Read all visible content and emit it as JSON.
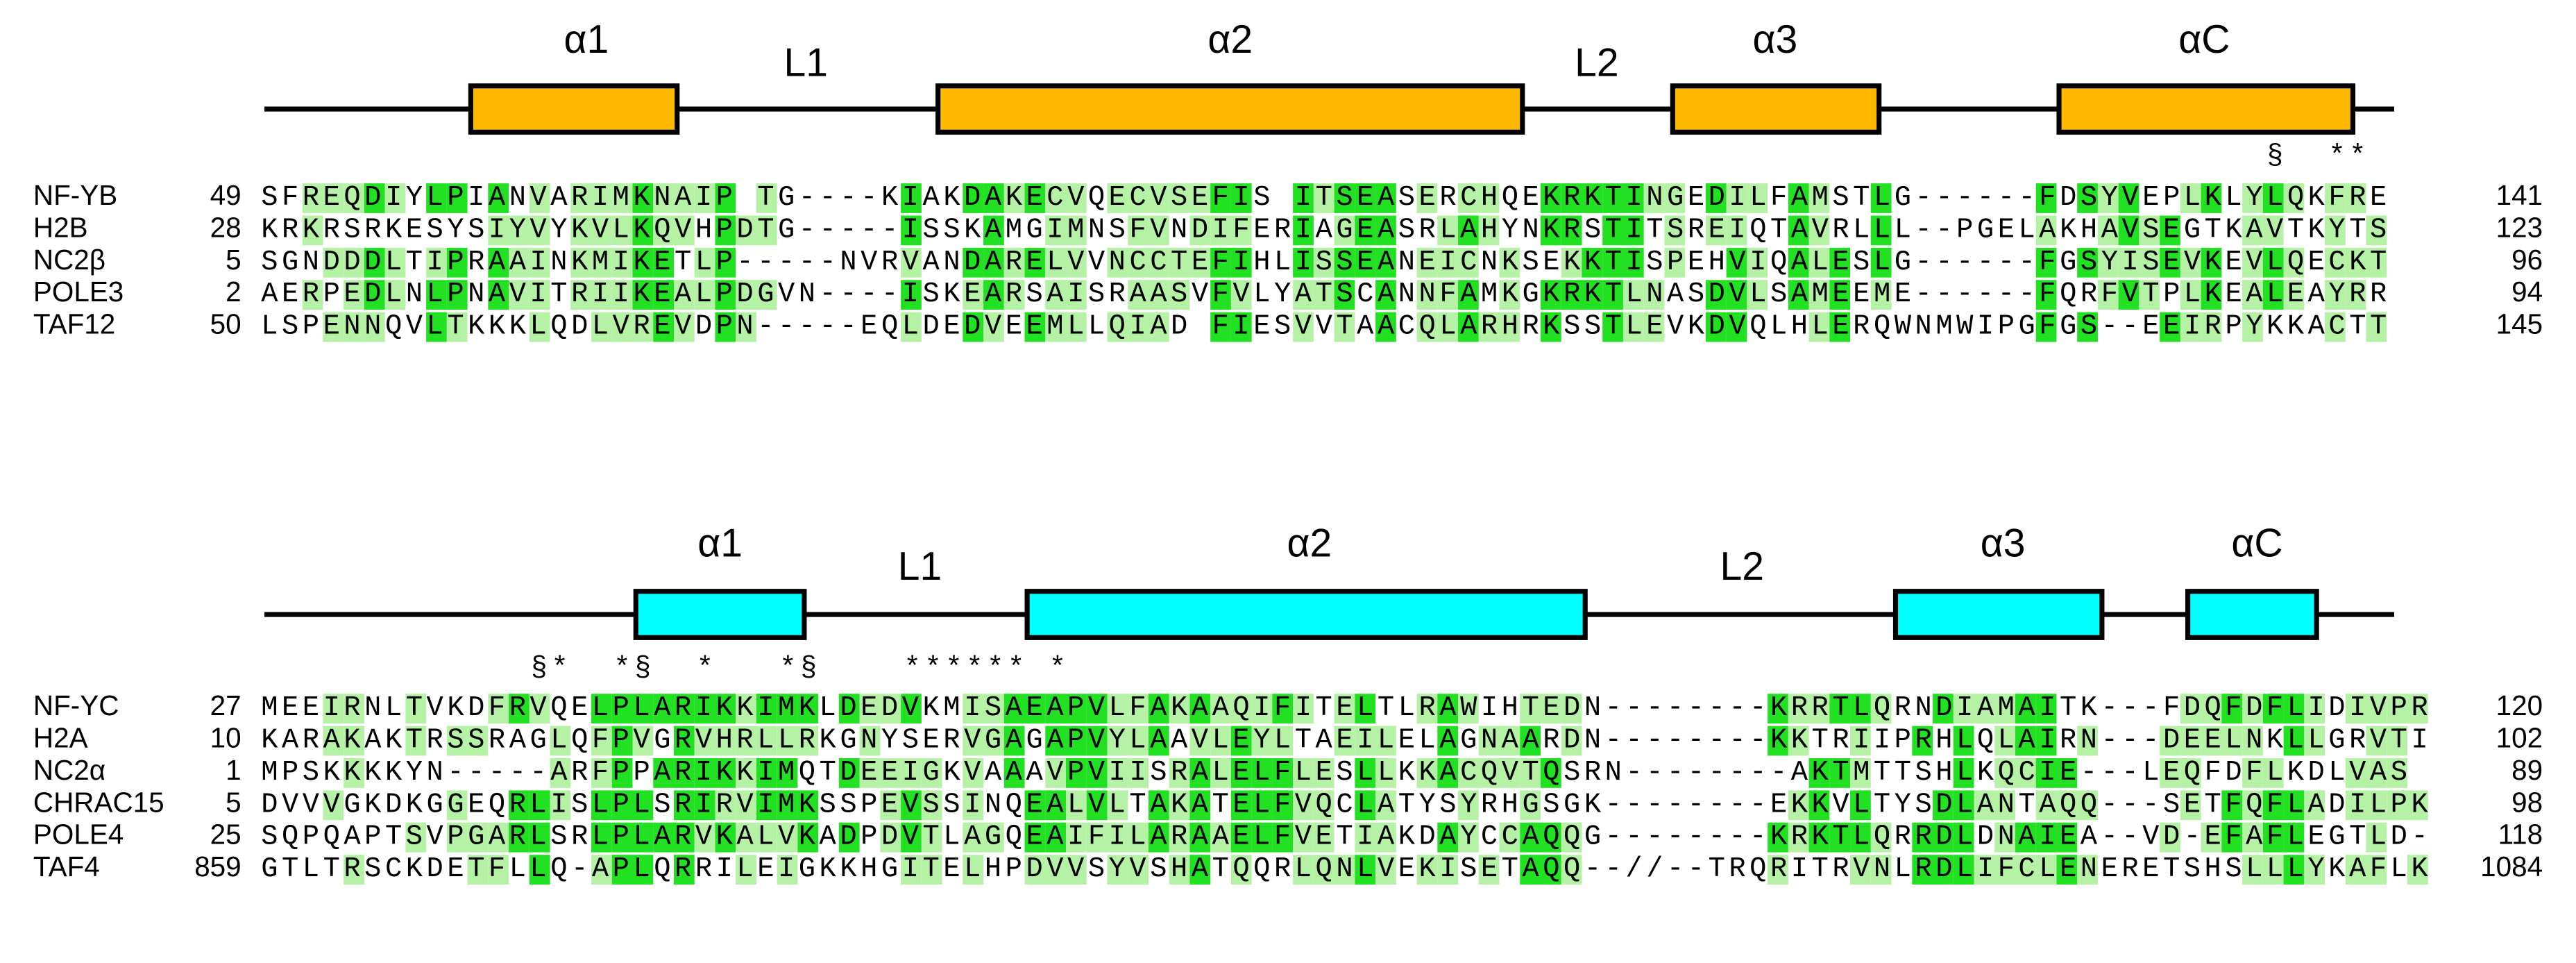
{
  "blocks": [
    {
      "topology": [
        "α1",
        "L1",
        "α2",
        "L2",
        "α3",
        "αC"
      ],
      "helix_color": "#ffb800",
      "markers": "                                                                                                 §  **",
      "rows": [
        {
          "name": "NF-YB",
          "start": 49,
          "sequence": "SFREQDIYLPIANVARIMKNAIP TG----KIAKDAKECVQECVSEFIS ITSEASERCHQEKRKTINGEDILFAMSTLG------FDSYVEPLKLYLQKFRE",
          "end": 141
        },
        {
          "name": "H2B",
          "start": 28,
          "sequence": "KRKRSRKESYSIYVYKVLKQVHPDTG-----ISSKAMGIMNSFVNDIFERIAGEASRLAHYNKRSTITSREIQTAVRLLL--PGELAKHAVSEGTKAVTKYTS",
          "end": 123
        },
        {
          "name": "NC2β",
          "start": 5,
          "sequence": "SGNDDDLTIPRAAINKMIKETLP-----NVRVANDARELVVNCCTEFIHLISSEANEICNKSEKKTISPEHVIQALESLG------FGSYISEVKEVLQECKT",
          "end": 96
        },
        {
          "name": "POLE3",
          "start": 2,
          "sequence": "AERPEDLNLPNAVITRIIKEALPDGVN----ISKEARSAISRAASVFVLYATSCANNFAMKGKRKTLNASDVLSAMEEME------FQRFVTPLKEALEAYRR",
          "end": 94
        },
        {
          "name": "TAF12",
          "start": 50,
          "sequence": "LSPENNQVLTKKKLQDLVREVDPN-----EQLDEDVEEMLLQIAD FIESVVTAACQLARHRKSSTLEVKDVQLHLERQWNMWIPGFGS--EEIRPYKKACTT",
          "end": 145
        }
      ]
    },
    {
      "topology": [
        "α1",
        "L1",
        "α2",
        "L2",
        "α3",
        "αC"
      ],
      "helix_color": "#00ffff",
      "markers": "             §*  *§  *   *§    ****** *",
      "rows": [
        {
          "name": "NF-YC",
          "start": 27,
          "sequence": "MEEIRNLTVKDFRVQELPLARIKKIMKLDEDVKMISAEAPVLFAKAAQIFITELTLRAWIHTEDN--------KRRTLQRNDIAMAITK---FDQFDFLIDIVPR",
          "end": 120
        },
        {
          "name": "H2A",
          "start": 10,
          "sequence": "KARAKAKTRSSRAGLQFPVGRVHRLLRKGNYSERVGAGAPVYLAAVLEYLTAEILELAGNAARDN--------KKTRIIPRHLQLAIRN---DEELNKLLGRVTI",
          "end": 102
        },
        {
          "name": "NC2α",
          "start": 1,
          "sequence": "MPSKKKKYN-----ARFPPARIKKIMQTDEEIGKVAAAVPVIISRALELFLESLLKKACQVTQSRN--------AKTMTTSHLKQCIE---LEQFDFLKDLVAS",
          "end": 89
        },
        {
          "name": "CHRAC15",
          "start": 5,
          "sequence": "DVVVGKDKGGEQRLISLPLSRIRVIMKSSPEVSSINQEALVLTAKATELFVQCLATYSYRHGSGK--------EKKVLTYSDLANTAQQ---SETFQFLADILPK",
          "end": 98
        },
        {
          "name": "POLE4",
          "start": 25,
          "sequence": "SQPQAPTSVPGARLSRLPLARVKALVKADPDVTLAGQEAIFILARAAELFVETIAKDAYCCAQQG--------KRKTLQRRDLDNAIEA--VD-EFAFLEGTLD-",
          "end": 118
        },
        {
          "name": "TAF4",
          "start": 859,
          "sequence": "GTLTRSCKDETFLLQ-APLQRRILEIGKKHGITELHPDVVSYVSHATQQRLQNLVEKISETAQQ--//--TRQRITRVNLRDLIFCLENERETSHSLLLYKAFLK",
          "end": 1084
        }
      ]
    }
  ]
}
